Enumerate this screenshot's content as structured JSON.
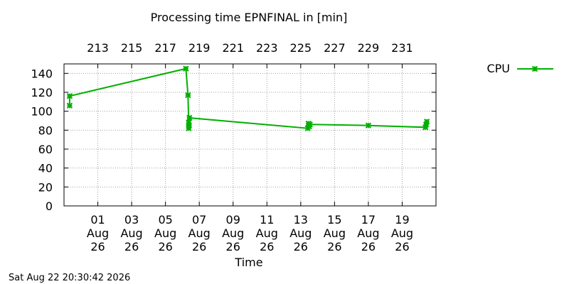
{
  "chart_data": {
    "type": "line",
    "title": "Processing time EPNFINAL in [min]",
    "xlabel": "Time",
    "ylabel": "",
    "ylim": [
      0,
      150
    ],
    "xlim": [
      "2026-07-30",
      "2026-08-21"
    ],
    "grid": true,
    "legend_position": "top-right",
    "timestamp": "Sat Aug 22 20:30:42 2026",
    "yticks": [
      "0",
      "20",
      "40",
      "60",
      "80",
      "100",
      "120",
      "140"
    ],
    "xticks_bottom": [
      {
        "date": "2026-08-01",
        "label": [
          "01",
          "Aug",
          "26"
        ]
      },
      {
        "date": "2026-08-03",
        "label": [
          "03",
          "Aug",
          "26"
        ]
      },
      {
        "date": "2026-08-05",
        "label": [
          "05",
          "Aug",
          "26"
        ]
      },
      {
        "date": "2026-08-07",
        "label": [
          "07",
          "Aug",
          "26"
        ]
      },
      {
        "date": "2026-08-09",
        "label": [
          "09",
          "Aug",
          "26"
        ]
      },
      {
        "date": "2026-08-11",
        "label": [
          "11",
          "Aug",
          "26"
        ]
      },
      {
        "date": "2026-08-13",
        "label": [
          "13",
          "Aug",
          "26"
        ]
      },
      {
        "date": "2026-08-15",
        "label": [
          "15",
          "Aug",
          "26"
        ]
      },
      {
        "date": "2026-08-17",
        "label": [
          "17",
          "Aug",
          "26"
        ]
      },
      {
        "date": "2026-08-19",
        "label": [
          "19",
          "Aug",
          "26"
        ]
      }
    ],
    "xticks_top": [
      "213",
      "215",
      "217",
      "219",
      "221",
      "223",
      "225",
      "227",
      "229",
      "231"
    ],
    "series": [
      {
        "name": "CPU",
        "color": "#00b000",
        "marker": "x-star",
        "points": [
          {
            "x": "2026-07-30 08:00",
            "y": 106
          },
          {
            "x": "2026-07-30 08:00",
            "y": 116
          },
          {
            "x": "2026-08-06 05:00",
            "y": 145
          },
          {
            "x": "2026-08-06 08:00",
            "y": 117
          },
          {
            "x": "2026-08-06 09:00",
            "y": 88
          },
          {
            "x": "2026-08-06 09:00",
            "y": 82
          },
          {
            "x": "2026-08-06 09:30",
            "y": 85
          },
          {
            "x": "2026-08-06 10:00",
            "y": 93
          },
          {
            "x": "2026-08-13 10:00",
            "y": 82
          },
          {
            "x": "2026-08-13 11:00",
            "y": 87
          },
          {
            "x": "2026-08-13 12:00",
            "y": 84
          },
          {
            "x": "2026-08-13 13:00",
            "y": 86
          },
          {
            "x": "2026-08-17 00:00",
            "y": 85
          },
          {
            "x": "2026-08-20 09:00",
            "y": 83
          },
          {
            "x": "2026-08-20 10:00",
            "y": 86
          },
          {
            "x": "2026-08-20 11:00",
            "y": 89
          }
        ]
      }
    ]
  }
}
